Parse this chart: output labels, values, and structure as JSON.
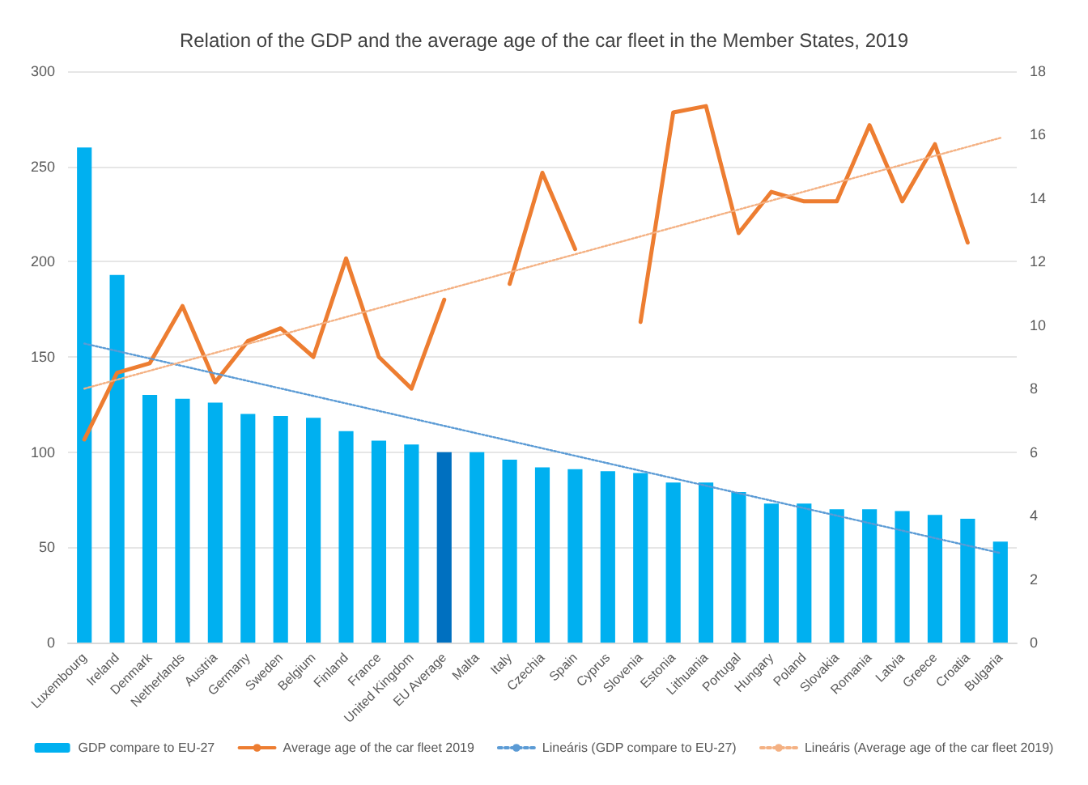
{
  "chart_data": {
    "type": "bar",
    "title": "Relation of the GDP and the average age of the car fleet in the Member States, 2019",
    "categories": [
      "Luxembourg",
      "Ireland",
      "Denmark",
      "Netherlands",
      "Austria",
      "Germany",
      "Sweden",
      "Belgium",
      "Finland",
      "France",
      "United Kingdom",
      "EU Average",
      "Malta",
      "Italy",
      "Czechia",
      "Spain",
      "Cyprus",
      "Slovenia",
      "Estonia",
      "Lithuania",
      "Portugal",
      "Hungary",
      "Poland",
      "Slovakia",
      "Romania",
      "Latvia",
      "Greece",
      "Croatia",
      "Bulgaria"
    ],
    "series": [
      {
        "name": "GDP compare to EU-27",
        "color": "#00b0f0",
        "colors": [
          "#00b0f0",
          "#00b0f0",
          "#00b0f0",
          "#00b0f0",
          "#00b0f0",
          "#00b0f0",
          "#00b0f0",
          "#00b0f0",
          "#00b0f0",
          "#00b0f0",
          "#00b0f0",
          "#0070c0",
          "#00b0f0",
          "#00b0f0",
          "#00b0f0",
          "#00b0f0",
          "#00b0f0",
          "#00b0f0",
          "#00b0f0",
          "#00b0f0",
          "#00b0f0",
          "#00b0f0",
          "#00b0f0",
          "#00b0f0",
          "#00b0f0",
          "#00b0f0",
          "#00b0f0",
          "#00b0f0",
          "#00b0f0"
        ],
        "values": [
          260,
          193,
          130,
          128,
          126,
          120,
          119,
          118,
          111,
          106,
          104,
          100,
          100,
          96,
          92,
          91,
          90,
          89,
          84,
          84,
          79,
          73,
          73,
          70,
          70,
          69,
          67,
          65,
          53
        ]
      },
      {
        "name": "Average age of the car fleet 2019",
        "type": "line",
        "axis": "y2",
        "color": "#ed7d31",
        "line_style": "solid",
        "values": [
          6.4,
          8.5,
          8.8,
          10.6,
          8.2,
          9.5,
          9.9,
          9.0,
          12.1,
          9.0,
          8.0,
          10.8,
          null,
          11.3,
          14.8,
          12.4,
          null,
          10.1,
          16.7,
          16.9,
          12.9,
          14.2,
          13.9,
          13.9,
          16.3,
          13.9,
          15.7,
          12.6,
          null
        ]
      },
      {
        "name": "Lineáris (GDP compare to EU-27)",
        "type": "line",
        "color": "#5b9bd5",
        "line_style": "dotted",
        "x": [
          "Luxembourg",
          "Bulgaria"
        ],
        "values": [
          157,
          47
        ]
      },
      {
        "name": "Lineáris (Average age of the car fleet 2019)",
        "type": "line",
        "axis": "y2",
        "color": "#f4b183",
        "line_style": "dotted",
        "x": [
          "Luxembourg",
          "Bulgaria"
        ],
        "values": [
          8.0,
          15.9
        ]
      }
    ],
    "ylim": [
      0,
      300
    ],
    "yticks": [
      0,
      50,
      100,
      150,
      200,
      250,
      300
    ],
    "y2lim": [
      0,
      18
    ],
    "y2ticks": [
      0,
      2,
      4,
      6,
      8,
      10,
      12,
      14,
      16,
      18
    ],
    "grid": "y",
    "legend": "bottom",
    "marker": "none"
  }
}
